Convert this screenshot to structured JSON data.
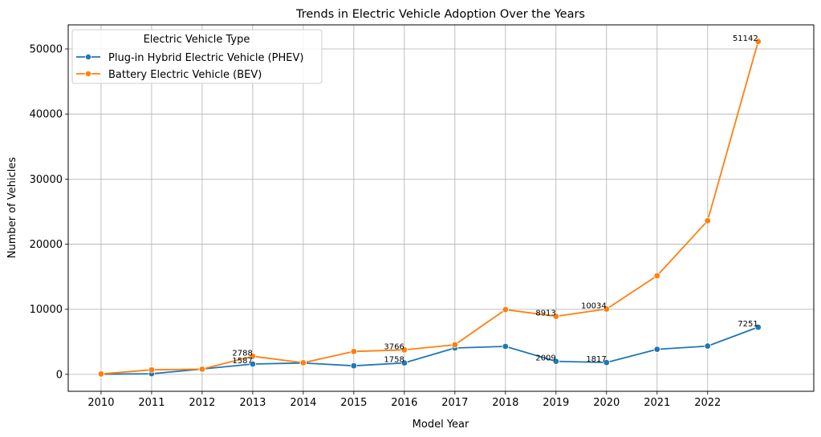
{
  "chart_data": {
    "type": "line",
    "title": "Trends in Electric Vehicle Adoption Over the Years",
    "xlabel": "Model Year",
    "ylabel": "Number of Vehicles",
    "x": [
      2010,
      2011,
      2012,
      2013,
      2014,
      2015,
      2016,
      2017,
      2018,
      2019,
      2020,
      2021,
      2022,
      2023
    ],
    "xticks": [
      "2010",
      "2011",
      "2012",
      "2013",
      "2014",
      "2015",
      "2016",
      "2017",
      "2018",
      "2019",
      "2020",
      "2021",
      "2022"
    ],
    "yticks": [
      0,
      10000,
      20000,
      30000,
      40000,
      50000
    ],
    "xlim": [
      2009.35,
      2024.1
    ],
    "ylim": [
      -2600,
      53700
    ],
    "grid": true,
    "legend": {
      "title": "Electric Vehicle Type",
      "placement": "upper-left"
    },
    "series": [
      {
        "name": "Plug-in Hybrid Electric Vehicle (PHEV)",
        "color": "#1f77b4",
        "values": [
          20,
          100,
          820,
          1587,
          1750,
          1320,
          1758,
          4050,
          4300,
          2009,
          1817,
          3850,
          4350,
          7251
        ]
      },
      {
        "name": "Battery Electric Vehicle (BEV)",
        "color": "#ff7f0e",
        "values": [
          60,
          700,
          800,
          2788,
          1780,
          3520,
          3766,
          4550,
          9950,
          8913,
          10034,
          15150,
          23600,
          51142
        ]
      }
    ],
    "annotations": [
      {
        "text": "1587",
        "x": 2013,
        "y": 1587
      },
      {
        "text": "1758",
        "x": 2016,
        "y": 1758
      },
      {
        "text": "2009",
        "x": 2019,
        "y": 2009
      },
      {
        "text": "1817",
        "x": 2020,
        "y": 1817
      },
      {
        "text": "7251",
        "x": 2023,
        "y": 7251
      },
      {
        "text": "2788",
        "x": 2013,
        "y": 2788
      },
      {
        "text": "3766",
        "x": 2016,
        "y": 3766
      },
      {
        "text": "8913",
        "x": 2019,
        "y": 8913
      },
      {
        "text": "10034",
        "x": 2020,
        "y": 10034
      },
      {
        "text": "51142",
        "x": 2023,
        "y": 51142
      }
    ]
  }
}
